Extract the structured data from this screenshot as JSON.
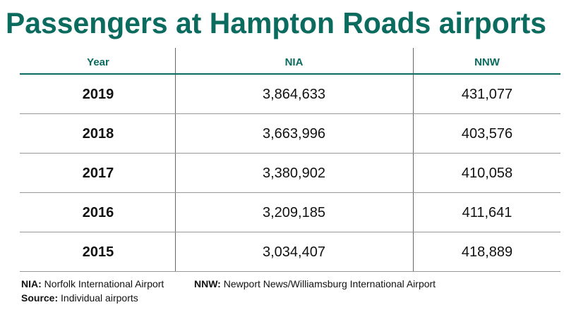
{
  "header": {
    "title": "Passengers at Hampton Roads airports"
  },
  "table": {
    "columns": [
      "Year",
      "NIA",
      "NNW"
    ],
    "rows": [
      [
        "2019",
        "3,864,633",
        "431,077"
      ],
      [
        "2018",
        "3,663,996",
        "403,576"
      ],
      [
        "2017",
        "3,380,902",
        "410,058"
      ],
      [
        "2016",
        "3,209,185",
        "411,641"
      ],
      [
        "2015",
        "3,034,407",
        "418,889"
      ]
    ]
  },
  "notes": [
    {
      "label": "NIA:",
      "text": "Norfolk International Airport"
    },
    {
      "label": "NNW:",
      "text": "Newport News/Williamsburg International Airport"
    },
    {
      "label": "Source:",
      "text": "Individual airports"
    }
  ]
}
